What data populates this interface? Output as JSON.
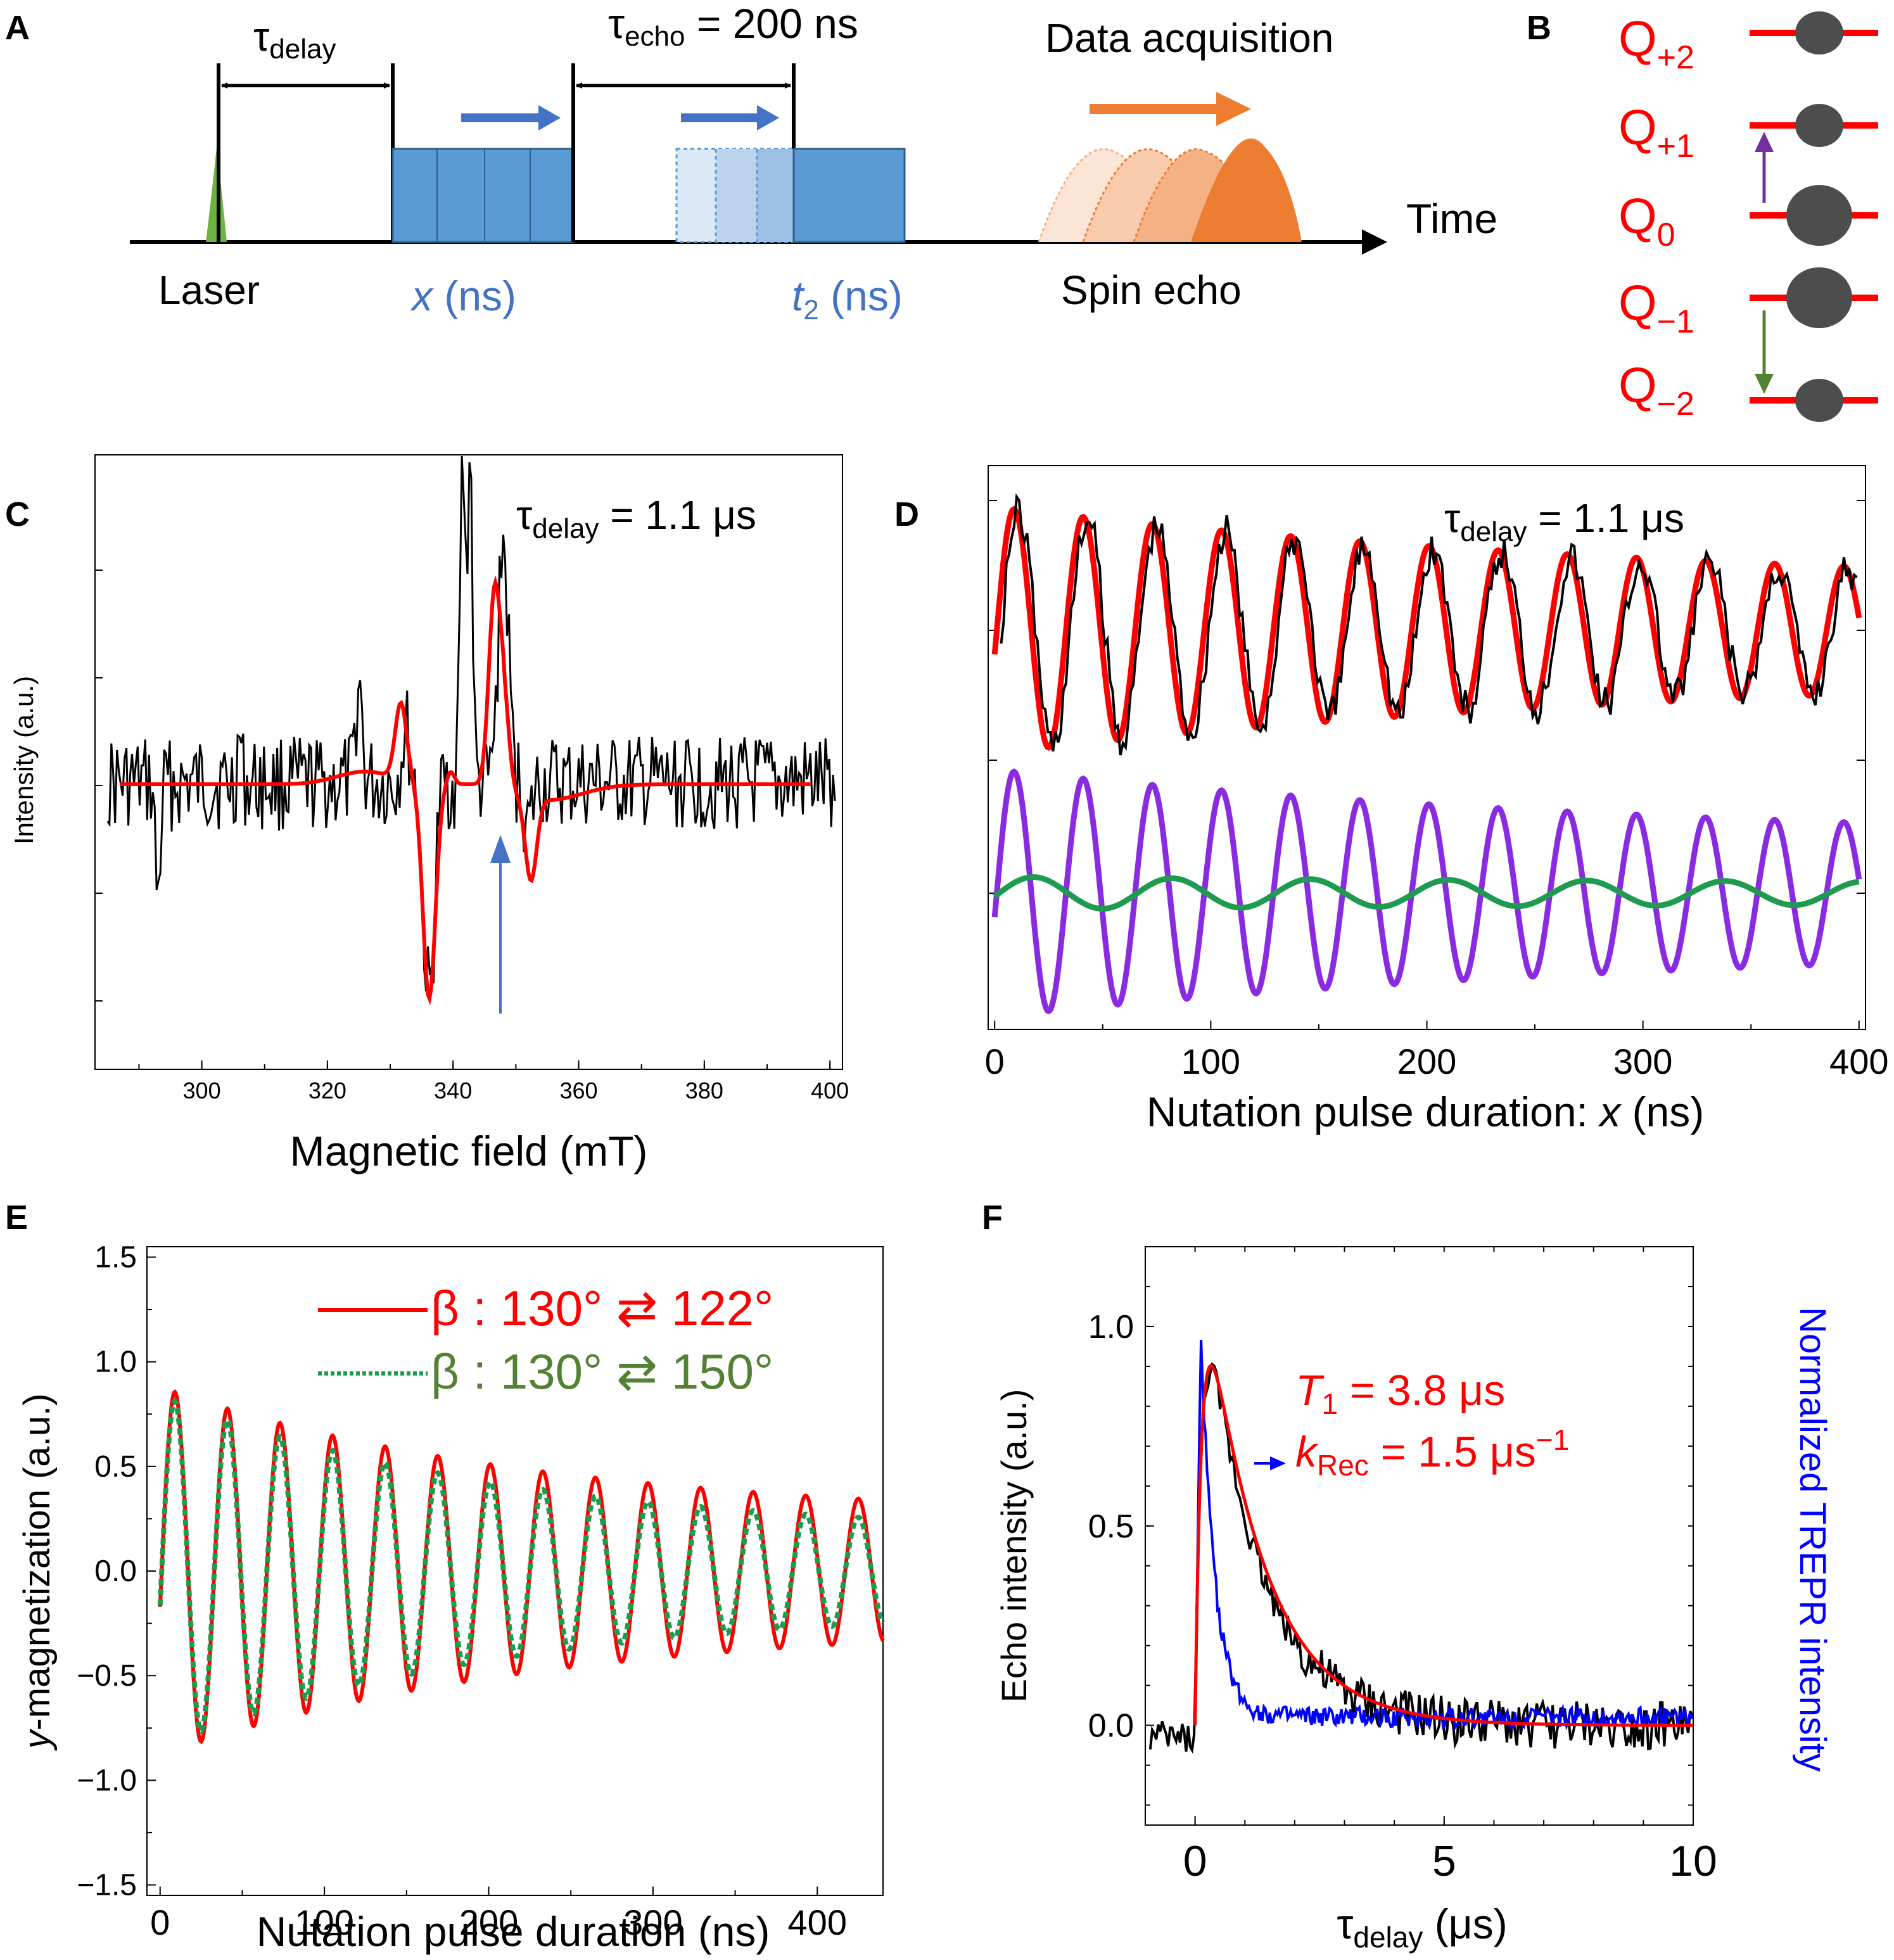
{
  "panel_labels": {
    "A": "A",
    "B": "B",
    "C": "C",
    "D": "D",
    "E": "E",
    "F": "F"
  },
  "panel_a": {
    "tau_delay_base": "τ",
    "tau_delay_sub": "delay",
    "tau_echo_base": "τ",
    "tau_echo_sub": "echo",
    "tau_echo_value": " = 200 ns",
    "data_acquisition": "Data acquisition",
    "time_label": "Time",
    "laser_label": "Laser",
    "x_label_var": "x",
    "x_label_unit": " (ns)",
    "t2_label_var": "t",
    "t2_label_sub": "2",
    "t2_label_unit": " (ns)",
    "spin_echo_label": "Spin echo",
    "colors": {
      "laser": "#6db33f",
      "pulse": "#5b9bd5",
      "arrow_blue": "#4472c4",
      "echo": "#ed7d31"
    }
  },
  "panel_b": {
    "levels": [
      {
        "base": "Q",
        "sub": "+2"
      },
      {
        "base": "Q",
        "sub": "+1"
      },
      {
        "base": "Q",
        "sub": "0"
      },
      {
        "base": "Q",
        "sub": "−1"
      },
      {
        "base": "Q",
        "sub": "−2"
      }
    ],
    "colors": {
      "level": "#ff0000",
      "dot": "#4d4d4d",
      "up_arrow": "#7030a0",
      "down_arrow": "#548235"
    }
  },
  "panel_c": {
    "annotation_base": "τ",
    "annotation_sub": "delay",
    "annotation_value": " = 1.1 μs",
    "ylabel": "Intensity (a.u.)",
    "xlabel": "Magnetic  field (mT)",
    "x_ticks": [
      "300",
      "320",
      "340",
      "360",
      "380",
      "400"
    ]
  },
  "panel_d": {
    "annotation_base": "τ",
    "annotation_sub": "delay",
    "annotation_value": " = 1.1 μs",
    "xlabel_text": "Nutation pulse duration: ",
    "xlabel_var": "x",
    "xlabel_unit": " (ns)",
    "x_ticks": [
      "0",
      "100",
      "200",
      "300",
      "400"
    ]
  },
  "panel_e": {
    "ylabel_var": "y",
    "ylabel_rest": "-magnetization (a.u.)",
    "xlabel": "Nutation pulse duration  (ns)",
    "x_ticks": [
      "0",
      "100",
      "200",
      "300",
      "400"
    ],
    "y_ticks": [
      "1.5",
      "1.0",
      "0.5",
      "0.0",
      "−0.5",
      "−1.0",
      "−1.5"
    ],
    "legend": [
      {
        "text": "β : 130°  ⇄ 122°",
        "color": "#ff0000"
      },
      {
        "text": "β : 130°  ⇄ 150°",
        "color": "#548235"
      }
    ]
  },
  "panel_f": {
    "ylabel": "Echo intensity (a.u.)",
    "ylabel_right": "Normalized  TREPR intensity",
    "xlabel_base": "τ",
    "xlabel_sub": "delay",
    "xlabel_unit": " (μs)",
    "x_ticks": [
      "0",
      "5",
      "10"
    ],
    "y_ticks": [
      "1.0",
      "0.5",
      "0.0"
    ],
    "t1_var": "T",
    "t1_sub": "1",
    "t1_value": " = 3.8 μs",
    "krec_var": "k",
    "krec_sub": "Rec",
    "krec_value": " = 1.5 μs",
    "krec_sup": "−1"
  },
  "chart_data": [
    {
      "type": "line",
      "title": "",
      "xlabel": "Magnetic  field (mT)",
      "ylabel": "Intensity (a.u.)",
      "xlim": [
        283,
        402
      ],
      "annotation": "τdelay = 1.1 μs",
      "series": [
        {
          "color": "#000000",
          "description_only": true
        },
        {
          "color": "#ff0000",
          "description_only": true
        }
      ],
      "notes": "noisy experimental spectrum (black) with simulation (red); arrow near 348 mT"
    },
    {
      "type": "line",
      "xlabel": "Nutation pulse duration: x (ns)",
      "xlim": [
        0,
        400
      ],
      "annotation": "τdelay = 1.1 μs",
      "series": [
        {
          "color": "#000000",
          "period_ns": 32,
          "decay_to": 0.3
        },
        {
          "color": "#ff0000",
          "period_ns": 32,
          "decay_to": 0.3
        },
        {
          "color": "#8a2be2",
          "period_ns": 32,
          "decay_to": 0.4
        },
        {
          "color": "#1e9b4f",
          "period_ns": 64,
          "amplitude_ratio": 0.15
        }
      ]
    },
    {
      "type": "line",
      "xlabel": "Nutation pulse duration  (ns)",
      "ylabel": "y-magnetization (a.u.)",
      "xlim": [
        0,
        440
      ],
      "ylim": [
        -1.5,
        1.5
      ],
      "series": [
        {
          "name": "β : 130°  ⇄ 122°",
          "color": "#ff0000",
          "x": [
            0,
            9,
            25,
            41,
            57,
            73,
            89,
            105,
            121,
            137,
            153,
            169,
            185,
            201,
            217,
            233,
            249,
            265,
            281,
            297,
            313,
            329,
            345,
            361,
            377,
            393,
            409,
            425
          ],
          "y": [
            0,
            0.87,
            -0.85,
            0.88,
            -0.9,
            0.88,
            -0.87,
            0.8,
            -0.76,
            0.63,
            -0.62,
            0.52,
            -0.57,
            0.49,
            -0.5,
            0.51,
            -0.45,
            0.45,
            -0.38,
            0.38,
            -0.32,
            0.33,
            -0.3,
            0.29,
            -0.3,
            0.28,
            -0.27,
            0.29
          ]
        },
        {
          "name": "β : 130°  ⇄ 150°",
          "color": "#1e9b4f",
          "x": [
            0,
            9,
            25,
            41,
            57,
            73,
            89,
            105,
            121,
            137,
            153,
            169,
            185,
            201,
            217,
            233,
            249,
            265,
            281,
            297,
            313,
            329,
            345,
            361,
            377,
            393,
            409,
            425
          ],
          "y": [
            0,
            0.83,
            -0.75,
            0.72,
            -0.67,
            0.68,
            -0.6,
            0.6,
            -0.53,
            0.5,
            -0.46,
            0.46,
            -0.43,
            0.42,
            -0.38,
            0.38,
            -0.34,
            0.33,
            -0.29,
            0.29,
            -0.26,
            0.25,
            -0.23,
            0.22,
            -0.2,
            0.2,
            -0.18,
            0.19
          ]
        }
      ]
    },
    {
      "type": "line",
      "xlabel": "τdelay (μs)",
      "ylabel": "Echo intensity (a.u.)",
      "ylabel_right": "Normalized  TREPR intensity",
      "xlim": [
        -1,
        10
      ],
      "ylim": [
        -0.25,
        1.2
      ],
      "annotations": [
        "T1 = 3.8 μs",
        "kRec = 1.5 μs−1"
      ],
      "series": [
        {
          "color": "#000000",
          "x": [
            -0.8,
            0,
            0.3,
            0.5,
            1,
            1.5,
            2,
            2.5,
            3,
            4,
            5,
            6,
            7,
            8,
            9,
            10
          ],
          "y": [
            -0.05,
            0,
            0.96,
            0.96,
            0.75,
            0.58,
            0.44,
            0.3,
            0.22,
            0.1,
            0.03,
            -0.02,
            0.0,
            -0.02,
            -0.01,
            0.0
          ]
        },
        {
          "color": "#ff0000",
          "x": [
            0,
            0.3,
            0.5,
            1,
            1.5,
            2,
            3,
            4,
            5,
            6,
            7,
            8,
            9,
            10
          ],
          "y": [
            0,
            0.9,
            0.94,
            0.8,
            0.62,
            0.47,
            0.25,
            0.12,
            0.05,
            0.02,
            0.01,
            0.0,
            0.0,
            0.0
          ]
        },
        {
          "color": "#0000ff",
          "x": [
            0,
            0.1,
            0.3,
            0.6,
            1,
            1.5,
            2,
            3,
            4,
            5,
            6,
            7,
            8,
            9,
            10
          ],
          "y": [
            0,
            1.0,
            0.7,
            0.3,
            0.08,
            0.03,
            0.02,
            0.01,
            0.0,
            0.01,
            0.0,
            0.0,
            0.02,
            0.0,
            0.0
          ]
        }
      ]
    }
  ]
}
